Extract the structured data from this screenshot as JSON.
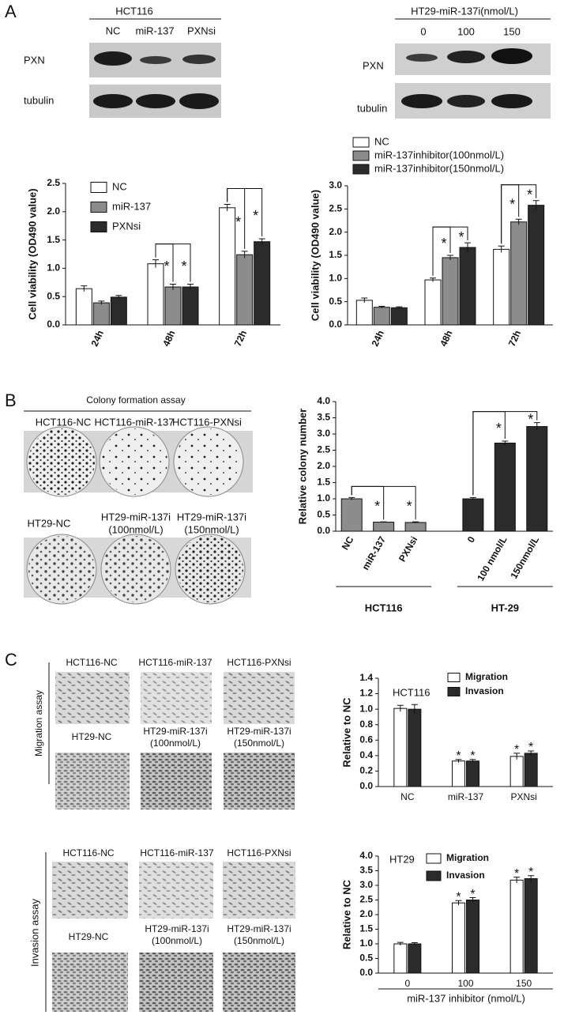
{
  "panel_labels": [
    "A",
    "B",
    "C"
  ],
  "blots": [
    {
      "title": "HCT116",
      "lanes": [
        "NC",
        "miR-137",
        "PXNsi"
      ],
      "rows": [
        "PXN",
        "tubulin"
      ]
    },
    {
      "title": "HT29-miR-137i(nmol/L)",
      "lanes": [
        "0",
        "100",
        "150"
      ],
      "rows": [
        "PXN",
        "tubulin"
      ]
    }
  ],
  "colony": {
    "title": "Colony formation assay",
    "rows": [
      [
        [
          "HCT116-NC"
        ],
        [
          "HCT116-miR-137"
        ],
        [
          "HCT116-PXNsi"
        ]
      ],
      [
        [
          "HT29-NC"
        ],
        [
          "HT29-miR-137i",
          "(100nmol/L)"
        ],
        [
          "HT29-miR-137i",
          "(150nmol/L)"
        ]
      ]
    ]
  },
  "assays": [
    {
      "label": "Migration assay",
      "rows": [
        [
          [
            "HCT116-NC"
          ],
          [
            "HCT116-miR-137"
          ],
          [
            "HCT116-PXNsi"
          ]
        ],
        [
          [
            "HT29-NC"
          ],
          [
            "HT29-miR-137i",
            "(100nmol/L)"
          ],
          [
            "HT29-miR-137i",
            "(150nmol/L)"
          ]
        ]
      ]
    },
    {
      "label": "Invasion assay",
      "rows": [
        [
          [
            "HCT116-NC"
          ],
          [
            "HCT116-miR-137"
          ],
          [
            "HCT116-PXNsi"
          ]
        ],
        [
          [
            "HT29-NC"
          ],
          [
            "HT29-miR-137i",
            "(100nmol/L)"
          ],
          [
            "HT29-miR-137i",
            "(150nmol/L)"
          ]
        ]
      ]
    }
  ],
  "chart_data": [
    {
      "type": "bar",
      "ylabel": "Cell viability (OD490 value)",
      "categories": [
        "24h",
        "48h",
        "72h"
      ],
      "series": [
        {
          "name": "NC",
          "color": "#ffffff",
          "values": [
            0.64,
            1.08,
            2.07
          ],
          "errors": [
            0.05,
            0.07,
            0.06
          ]
        },
        {
          "name": "miR-137",
          "color": "#8c8c8c",
          "values": [
            0.39,
            0.67,
            1.24
          ],
          "errors": [
            0.03,
            0.05,
            0.06
          ]
        },
        {
          "name": "PXNsi",
          "color": "#2b2b2b",
          "values": [
            0.49,
            0.67,
            1.47
          ],
          "errors": [
            0.03,
            0.05,
            0.05
          ]
        }
      ],
      "ylim": [
        0,
        2.5
      ],
      "yticks": [
        {
          "value": 0,
          "label": "0.0"
        },
        0.5,
        {
          "value": 1,
          "label": "1.0"
        },
        1.5,
        {
          "value": 2,
          "label": "2.0"
        },
        2.5
      ],
      "significance": [
        {
          "category": "48h",
          "from": "NC",
          "to": "miR-137",
          "label": "*"
        },
        {
          "category": "48h",
          "from": "NC",
          "to": "PXNsi",
          "label": "*"
        },
        {
          "category": "72h",
          "from": "NC",
          "to": "miR-137",
          "label": "*"
        },
        {
          "category": "72h",
          "from": "NC",
          "to": "PXNsi",
          "label": "*"
        }
      ]
    },
    {
      "type": "bar",
      "ylabel": "Cell viability (OD490 value)",
      "categories": [
        "24h",
        "48h",
        "72h"
      ],
      "series": [
        {
          "name": "NC",
          "color": "#ffffff",
          "values": [
            0.53,
            0.97,
            1.63
          ],
          "errors": [
            0.05,
            0.04,
            0.07
          ]
        },
        {
          "name": "miR-137inhibitor(100nmol/L)",
          "color": "#8c8c8c",
          "values": [
            0.38,
            1.45,
            2.22
          ],
          "errors": [
            0.02,
            0.05,
            0.06
          ]
        },
        {
          "name": "miR-137inhibitor(150nmol/L)",
          "color": "#2b2b2b",
          "values": [
            0.37,
            1.67,
            2.58
          ],
          "errors": [
            0.02,
            0.1,
            0.1
          ]
        }
      ],
      "ylim": [
        0,
        3
      ],
      "yticks": [
        {
          "value": 0,
          "label": "0.0"
        },
        0.5,
        {
          "value": 1,
          "label": "1.0"
        },
        1.5,
        {
          "value": 2,
          "label": "2.0"
        },
        2.5,
        {
          "value": 3,
          "label": "3.0"
        }
      ],
      "significance": [
        {
          "category": "48h",
          "from": "NC",
          "to": "miR-137inhibitor(100nmol/L)",
          "label": "*"
        },
        {
          "category": "48h",
          "from": "NC",
          "to": "miR-137inhibitor(150nmol/L)",
          "label": "*"
        },
        {
          "category": "72h",
          "from": "NC",
          "to": "miR-137inhibitor(100nmol/L)",
          "label": "*"
        },
        {
          "category": "72h",
          "from": "NC",
          "to": "miR-137inhibitor(150nmol/L)",
          "label": "*"
        }
      ]
    },
    {
      "type": "bar",
      "ylabel": "Relative colony number",
      "categories": [
        "NC",
        "miR-137",
        "PXNsi",
        "0",
        "100 nmol/L",
        "150nmol/L"
      ],
      "values": [
        1.0,
        0.28,
        0.27,
        1.0,
        2.72,
        3.23
      ],
      "errors": [
        0.04,
        0.01,
        0.02,
        0.04,
        0.06,
        0.12
      ],
      "colors": [
        "#8c8c8c",
        "#8c8c8c",
        "#8c8c8c",
        "#2b2b2b",
        "#2b2b2b",
        "#2b2b2b"
      ],
      "groups": [
        {
          "label": "HCT116",
          "categories": [
            "NC",
            "miR-137",
            "PXNsi"
          ]
        },
        {
          "label": "HT-29",
          "categories": [
            "0",
            "100 nmol/L",
            "150nmol/L"
          ]
        }
      ],
      "ylim": [
        0,
        4
      ],
      "yticks": [
        {
          "value": 0,
          "label": "0.0"
        },
        0.5,
        {
          "value": 1,
          "label": "1.0"
        },
        1.5,
        {
          "value": 2,
          "label": "2.0"
        },
        2.5,
        {
          "value": 3,
          "label": "3.0"
        },
        3.5,
        {
          "value": 4,
          "label": "4.0"
        }
      ],
      "significance": [
        {
          "from": "NC",
          "to": "miR-137",
          "label": "*"
        },
        {
          "from": "NC",
          "to": "PXNsi",
          "label": "*"
        },
        {
          "from": "0",
          "to": "100 nmol/L",
          "label": "*"
        },
        {
          "from": "0",
          "to": "150nmol/L",
          "label": "*"
        }
      ]
    },
    {
      "type": "bar",
      "title": "HCT116",
      "ylabel": "Relative to NC",
      "categories": [
        "NC",
        "miR-137",
        "PXNsi"
      ],
      "series": [
        {
          "name": "Migration",
          "color": "#ffffff",
          "values": [
            1.01,
            0.33,
            0.39
          ],
          "errors": [
            0.04,
            0.02,
            0.04
          ]
        },
        {
          "name": "Invasion",
          "color": "#2b2b2b",
          "values": [
            1.0,
            0.33,
            0.43
          ],
          "errors": [
            0.06,
            0.02,
            0.03
          ]
        }
      ],
      "ylim": [
        0,
        1.4
      ],
      "yticks": [
        {
          "value": 0,
          "label": "0.0"
        },
        0.2,
        0.4,
        0.6,
        0.8,
        {
          "value": 1,
          "label": "1.0"
        },
        1.2,
        1.4
      ],
      "annotations": [
        {
          "category": "miR-137",
          "series": "Migration",
          "label": "*"
        },
        {
          "category": "miR-137",
          "series": "Invasion",
          "label": "*"
        },
        {
          "category": "PXNsi",
          "series": "Migration",
          "label": "*"
        },
        {
          "category": "PXNsi",
          "series": "Invasion",
          "label": "*"
        }
      ]
    },
    {
      "type": "bar",
      "title": "HT29",
      "ylabel": "Relative to NC",
      "xlabel": "miR-137 inhibitor (nmol/L)",
      "categories": [
        "0",
        "100",
        "150"
      ],
      "series": [
        {
          "name": "Migration",
          "color": "#ffffff",
          "values": [
            1.0,
            2.4,
            3.18
          ],
          "errors": [
            0.05,
            0.08,
            0.1
          ]
        },
        {
          "name": "Invasion",
          "color": "#2b2b2b",
          "values": [
            1.0,
            2.5,
            3.23
          ],
          "errors": [
            0.04,
            0.08,
            0.1
          ]
        }
      ],
      "ylim": [
        0,
        4
      ],
      "yticks": [
        {
          "value": 0,
          "label": "0.0"
        },
        0.5,
        {
          "value": 1,
          "label": "1.0"
        },
        1.5,
        {
          "value": 2,
          "label": "2.0"
        },
        2.5,
        {
          "value": 3,
          "label": "3.0"
        },
        3.5,
        {
          "value": 4,
          "label": "4.0"
        }
      ],
      "annotations": [
        {
          "category": "100",
          "series": "Migration",
          "label": "*"
        },
        {
          "category": "100",
          "series": "Invasion",
          "label": "*"
        },
        {
          "category": "150",
          "series": "Migration",
          "label": "*"
        },
        {
          "category": "150",
          "series": "Invasion",
          "label": "*"
        }
      ]
    }
  ]
}
